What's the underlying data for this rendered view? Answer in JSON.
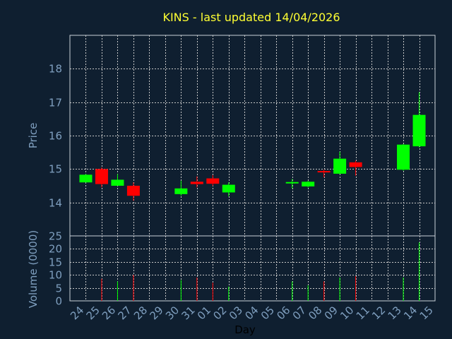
{
  "chart_data": {
    "type": "candlestick",
    "title": "KINS - last updated 14/04/2026",
    "xlabel": "Day",
    "ylabel": "Price",
    "volume_label": "Volume (0000)",
    "grid": true,
    "colors": {
      "up": "#00ff00",
      "down": "#ff0000",
      "background": "#0f1f30",
      "text": "#7f9fbf",
      "title": "#ffff33"
    },
    "price_ylim": [
      13,
      19
    ],
    "price_ticks": [
      14,
      15,
      16,
      17,
      18
    ],
    "volume_ylim": [
      0,
      25
    ],
    "volume_ticks": [
      0,
      5,
      10,
      15,
      20,
      25
    ],
    "days": [
      "24",
      "25",
      "26",
      "27",
      "28",
      "29",
      "30",
      "31",
      "01",
      "02",
      "03",
      "04",
      "05",
      "06",
      "07",
      "08",
      "09",
      "10",
      "11",
      "12",
      "13",
      "14",
      "15"
    ],
    "candles": [
      {
        "day": "24",
        "open": 14.6,
        "close": 14.83,
        "high": 14.85,
        "low": 14.6,
        "volume": 0
      },
      {
        "day": "25",
        "open": 15.0,
        "close": 14.55,
        "high": 15.05,
        "low": 14.45,
        "volume": 8.5
      },
      {
        "day": "26",
        "open": 14.5,
        "close": 14.68,
        "high": 14.85,
        "low": 14.5,
        "volume": 7.5
      },
      {
        "day": "27",
        "open": 14.5,
        "close": 14.2,
        "high": 14.6,
        "low": 14.05,
        "volume": 10
      },
      {
        "day": "30",
        "open": 14.25,
        "close": 14.42,
        "high": 14.65,
        "low": 14.2,
        "volume": 8
      },
      {
        "day": "31",
        "open": 14.62,
        "close": 14.55,
        "high": 14.78,
        "low": 14.45,
        "volume": 9
      },
      {
        "day": "01",
        "open": 14.72,
        "close": 14.56,
        "high": 14.82,
        "low": 14.5,
        "volume": 7
      },
      {
        "day": "02",
        "open": 14.3,
        "close": 14.53,
        "high": 14.6,
        "low": 14.18,
        "volume": 5.5
      },
      {
        "day": "06",
        "open": 14.57,
        "close": 14.59,
        "high": 14.7,
        "low": 14.42,
        "volume": 7.5
      },
      {
        "day": "07",
        "open": 14.48,
        "close": 14.62,
        "high": 14.65,
        "low": 14.45,
        "volume": 6
      },
      {
        "day": "08",
        "open": 14.92,
        "close": 14.88,
        "high": 14.98,
        "low": 14.75,
        "volume": 7.5
      },
      {
        "day": "09",
        "open": 14.86,
        "close": 15.31,
        "high": 15.52,
        "low": 14.85,
        "volume": 9
      },
      {
        "day": "10",
        "open": 15.2,
        "close": 15.06,
        "high": 15.25,
        "low": 14.8,
        "volume": 9.5
      },
      {
        "day": "13",
        "open": 14.98,
        "close": 15.73,
        "high": 15.75,
        "low": 14.95,
        "volume": 9
      },
      {
        "day": "14",
        "open": 15.68,
        "close": 16.62,
        "high": 17.3,
        "low": 15.65,
        "volume": 22.5
      }
    ]
  }
}
